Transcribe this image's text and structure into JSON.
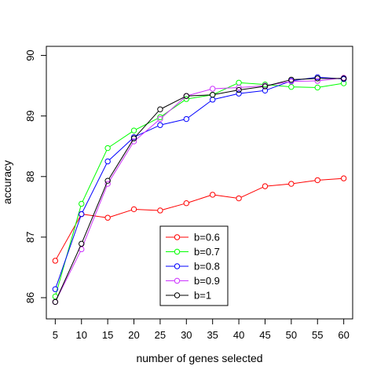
{
  "chart_data": {
    "type": "line",
    "title": "",
    "xlabel": "number of genes selected",
    "ylabel": "accuracy",
    "x": [
      5,
      10,
      15,
      20,
      25,
      30,
      35,
      40,
      45,
      50,
      55,
      60
    ],
    "xlim": [
      3.3,
      61.7
    ],
    "ylim": [
      85.65,
      90.15
    ],
    "x_ticks": [
      5,
      10,
      15,
      20,
      25,
      30,
      35,
      40,
      45,
      50,
      55,
      60
    ],
    "y_ticks": [
      86,
      87,
      88,
      89,
      90
    ],
    "grid": false,
    "legend_position": "bottom-center",
    "series": [
      {
        "name": "b=0.6",
        "color": "#ff0000",
        "values": [
          86.61,
          87.38,
          87.32,
          87.46,
          87.44,
          87.56,
          87.7,
          87.64,
          87.84,
          87.88,
          87.94,
          87.97
        ]
      },
      {
        "name": "b=0.7",
        "color": "#00ff00",
        "values": [
          86.02,
          87.55,
          88.47,
          88.76,
          88.98,
          89.28,
          89.35,
          89.55,
          89.52,
          89.48,
          89.47,
          89.54
        ]
      },
      {
        "name": "b=0.8",
        "color": "#0000ff",
        "values": [
          86.14,
          87.38,
          88.25,
          88.65,
          88.85,
          88.95,
          89.27,
          89.37,
          89.42,
          89.58,
          89.64,
          89.61
        ]
      },
      {
        "name": "b=0.9",
        "color": "#cc33ff",
        "values": [
          85.93,
          86.8,
          87.88,
          88.58,
          88.95,
          89.33,
          89.45,
          89.47,
          89.5,
          89.57,
          89.58,
          89.63
        ]
      },
      {
        "name": "b=1",
        "color": "#000000",
        "values": [
          85.93,
          86.89,
          87.93,
          88.63,
          89.11,
          89.33,
          89.35,
          89.43,
          89.49,
          89.6,
          89.62,
          89.62
        ]
      }
    ]
  }
}
